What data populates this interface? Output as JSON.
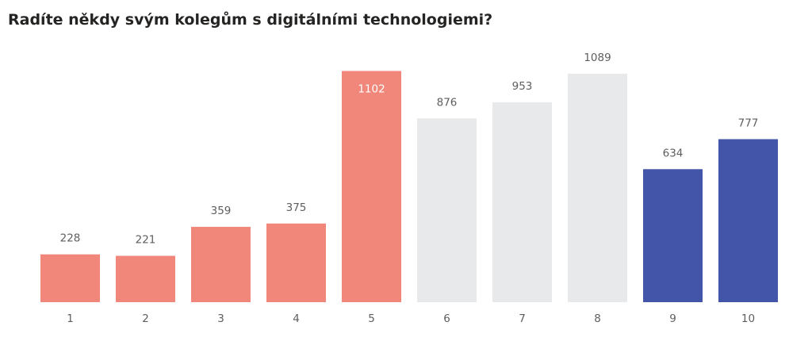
{
  "chart_data": {
    "type": "bar",
    "title": "Radíte někdy svým kolegům s digitálními technologiemi?",
    "xlabel": "",
    "ylabel": "",
    "categories": [
      "1",
      "2",
      "3",
      "4",
      "5",
      "6",
      "7",
      "8",
      "9",
      "10"
    ],
    "values": [
      228,
      221,
      359,
      375,
      1102,
      876,
      953,
      1089,
      634,
      777
    ],
    "ylim": [
      0,
      1102
    ],
    "grid": false,
    "legend": "none",
    "colors": {
      "low": "#F0877A",
      "mid": "#E8E9EB",
      "high": "#4255A8"
    },
    "bar_groups": [
      "low",
      "low",
      "low",
      "low",
      "low",
      "mid",
      "mid",
      "mid",
      "high",
      "high"
    ],
    "inside_label_index": 4
  }
}
